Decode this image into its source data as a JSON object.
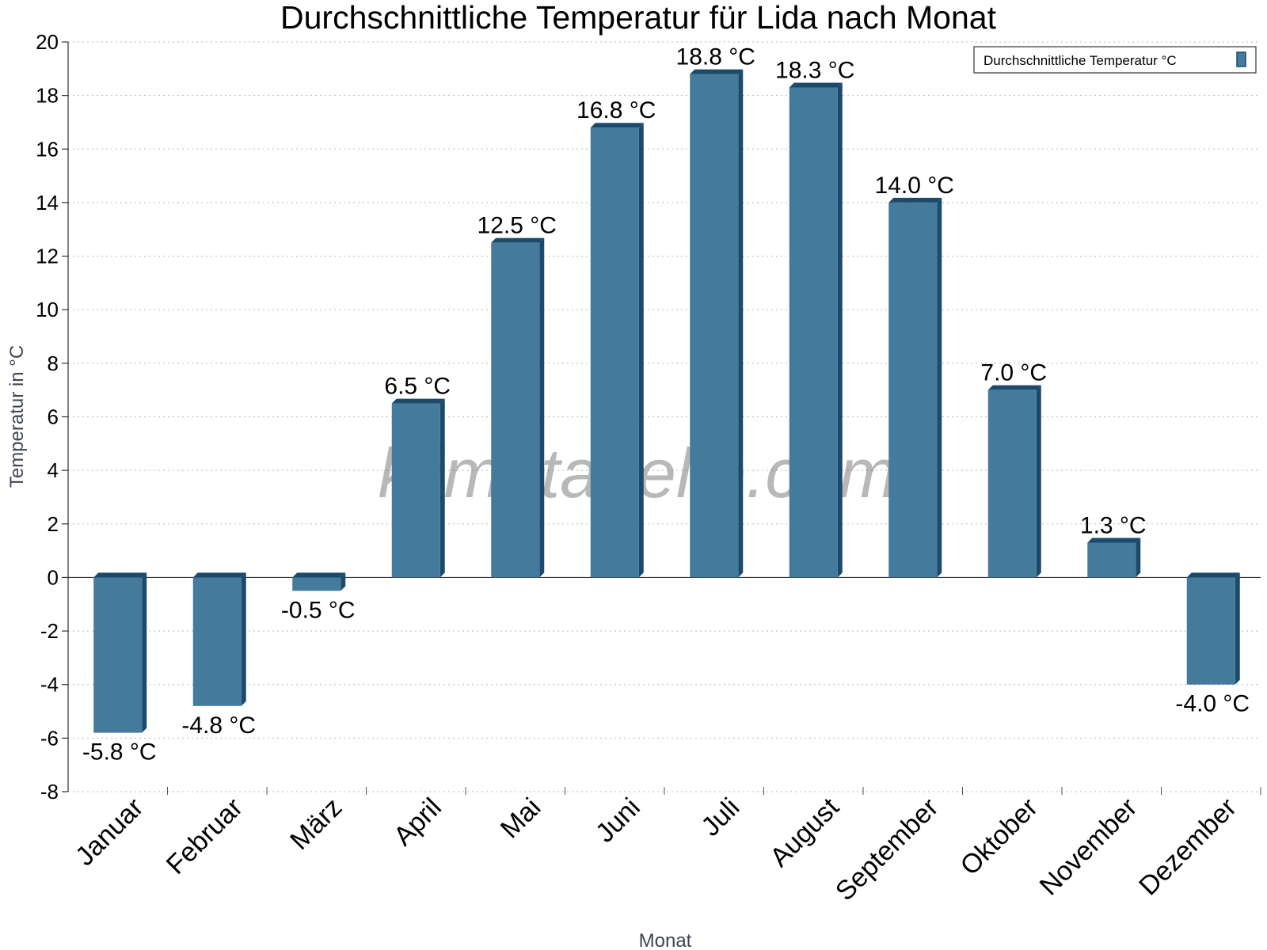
{
  "chart_data": {
    "type": "bar",
    "title": "Durchschnittliche Temperatur für Lida nach Monat",
    "xlabel": "Monat",
    "ylabel": "Temperatur in °C",
    "ylim": [
      -8,
      20
    ],
    "yticks": [
      20,
      18,
      16,
      14,
      12,
      10,
      8,
      6,
      4,
      2,
      0,
      -2,
      -4,
      -6,
      -8
    ],
    "grid": true,
    "legend_position": "top-right",
    "categories": [
      "Januar",
      "Februar",
      "März",
      "April",
      "Mai",
      "Juni",
      "Juli",
      "August",
      "September",
      "Oktober",
      "November",
      "Dezember"
    ],
    "series": [
      {
        "name": "Durchschnittliche Temperatur °C",
        "values": [
          -5.8,
          -4.8,
          -0.5,
          6.5,
          12.5,
          16.8,
          18.8,
          18.3,
          14.0,
          7.0,
          1.3,
          -4.0
        ],
        "labels": [
          "-5.8 °C",
          "-4.8 °C",
          "-0.5 °C",
          "6.5 °C",
          "12.5 °C",
          "16.8 °C",
          "18.8 °C",
          "18.3 °C",
          "14.0 °C",
          "7.0 °C",
          "1.3 °C",
          "-4.0 °C"
        ],
        "color": "#447a9c",
        "shade_color": "#1b4a6a"
      }
    ],
    "watermark": "klimatabelle.com"
  }
}
